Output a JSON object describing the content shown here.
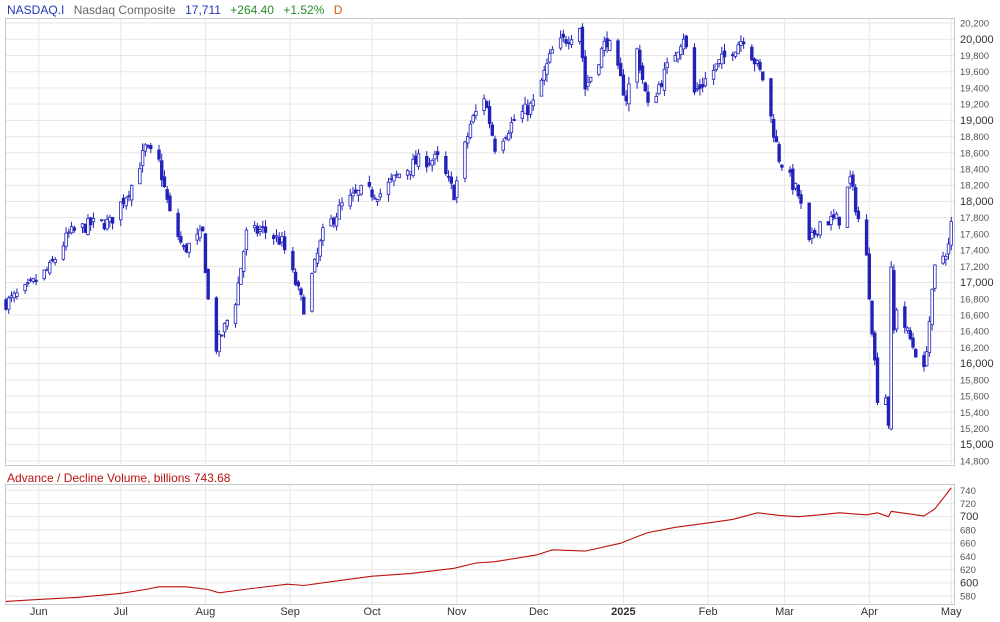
{
  "header": {
    "symbol": "NASDAQ.I",
    "name": "Nasdaq Composite",
    "last": "17,711",
    "change": "+264.40",
    "change_pct": "+1.52%",
    "period": "D"
  },
  "colors": {
    "symbol": "#2233bb",
    "name": "#666666",
    "last": "#2233bb",
    "up": "#2a8a2a",
    "period": "#dd5500",
    "candle": "#2222bb",
    "sub_title": "#bb1111",
    "sub_line": "#bb1111",
    "grid": "#e6e6e6"
  },
  "chart_data": [
    {
      "type": "candlestick",
      "title": "",
      "y_axis_side": "right",
      "ylim": [
        14750,
        20250
      ],
      "y_ticks": [
        {
          "value": 20200,
          "label": "20,200",
          "major": false
        },
        {
          "value": 20000,
          "label": "20,000",
          "major": true
        },
        {
          "value": 19800,
          "label": "19,800",
          "major": false
        },
        {
          "value": 19600,
          "label": "19,600",
          "major": false
        },
        {
          "value": 19400,
          "label": "19,400",
          "major": false
        },
        {
          "value": 19200,
          "label": "19,200",
          "major": false
        },
        {
          "value": 19000,
          "label": "19,000",
          "major": true
        },
        {
          "value": 18800,
          "label": "18,800",
          "major": false
        },
        {
          "value": 18600,
          "label": "18,600",
          "major": false
        },
        {
          "value": 18400,
          "label": "18,400",
          "major": false
        },
        {
          "value": 18200,
          "label": "18,200",
          "major": false
        },
        {
          "value": 18000,
          "label": "18,000",
          "major": true
        },
        {
          "value": 17800,
          "label": "17,800",
          "major": false
        },
        {
          "value": 17600,
          "label": "17,600",
          "major": false
        },
        {
          "value": 17400,
          "label": "17,400",
          "major": false
        },
        {
          "value": 17200,
          "label": "17,200",
          "major": false
        },
        {
          "value": 17000,
          "label": "17,000",
          "major": true
        },
        {
          "value": 16800,
          "label": "16,800",
          "major": false
        },
        {
          "value": 16600,
          "label": "16,600",
          "major": false
        },
        {
          "value": 16400,
          "label": "16,400",
          "major": false
        },
        {
          "value": 16200,
          "label": "16,200",
          "major": false
        },
        {
          "value": 16000,
          "label": "16,000",
          "major": true
        },
        {
          "value": 15800,
          "label": "15,800",
          "major": false
        },
        {
          "value": 15600,
          "label": "15,600",
          "major": false
        },
        {
          "value": 15400,
          "label": "15,400",
          "major": false
        },
        {
          "value": 15200,
          "label": "15,200",
          "major": false
        },
        {
          "value": 15000,
          "label": "15,000",
          "major": true
        },
        {
          "value": 14800,
          "label": "14,800",
          "major": false
        }
      ],
      "x_ticks": [
        {
          "date": "2024-06-01",
          "label": "Jun",
          "bold": false
        },
        {
          "date": "2024-07-01",
          "label": "Jul",
          "bold": false
        },
        {
          "date": "2024-08-01",
          "label": "Aug",
          "bold": false
        },
        {
          "date": "2024-09-01",
          "label": "Sep",
          "bold": false
        },
        {
          "date": "2024-10-01",
          "label": "Oct",
          "bold": false
        },
        {
          "date": "2024-11-01",
          "label": "Nov",
          "bold": false
        },
        {
          "date": "2024-12-01",
          "label": "Dec",
          "bold": false
        },
        {
          "date": "2025-01-01",
          "label": "2025",
          "bold": true
        },
        {
          "date": "2025-02-01",
          "label": "Feb",
          "bold": false
        },
        {
          "date": "2025-03-01",
          "label": "Mar",
          "bold": false
        },
        {
          "date": "2025-04-01",
          "label": "Apr",
          "bold": false
        },
        {
          "date": "2025-05-01",
          "label": "May",
          "bold": false
        }
      ],
      "x_range": [
        "2024-05-20",
        "2025-05-02"
      ],
      "close_path": [
        [
          "2024-05-20",
          16750
        ],
        [
          "2024-05-28",
          16930
        ],
        [
          "2024-06-05",
          17180
        ],
        [
          "2024-06-12",
          17600
        ],
        [
          "2024-06-20",
          17720
        ],
        [
          "2024-06-27",
          17740
        ],
        [
          "2024-07-05",
          18200
        ],
        [
          "2024-07-10",
          18650
        ],
        [
          "2024-07-15",
          18480
        ],
        [
          "2024-07-19",
          17840
        ],
        [
          "2024-07-24",
          17400
        ],
        [
          "2024-07-31",
          17600
        ],
        [
          "2024-08-02",
          16780
        ],
        [
          "2024-08-05",
          16200
        ],
        [
          "2024-08-12",
          16780
        ],
        [
          "2024-08-16",
          17600
        ],
        [
          "2024-08-22",
          17650
        ],
        [
          "2024-08-29",
          17500
        ],
        [
          "2024-09-06",
          16690
        ],
        [
          "2024-09-13",
          17600
        ],
        [
          "2024-09-20",
          17950
        ],
        [
          "2024-09-27",
          18120
        ],
        [
          "2024-10-04",
          18100
        ],
        [
          "2024-10-11",
          18340
        ],
        [
          "2024-10-18",
          18500
        ],
        [
          "2024-10-25",
          18520
        ],
        [
          "2024-10-31",
          18100
        ],
        [
          "2024-11-06",
          18950
        ],
        [
          "2024-11-11",
          19300
        ],
        [
          "2024-11-15",
          18680
        ],
        [
          "2024-11-22",
          19000
        ],
        [
          "2024-11-29",
          19200
        ],
        [
          "2024-12-06",
          19850
        ],
        [
          "2024-12-16",
          20170
        ],
        [
          "2024-12-18",
          19400
        ],
        [
          "2024-12-26",
          20000
        ],
        [
          "2025-01-02",
          19280
        ],
        [
          "2025-01-06",
          19860
        ],
        [
          "2025-01-10",
          19160
        ],
        [
          "2025-01-15",
          19500
        ],
        [
          "2025-01-23",
          20050
        ],
        [
          "2025-01-27",
          19340
        ],
        [
          "2025-02-05",
          19700
        ],
        [
          "2025-02-14",
          20030
        ],
        [
          "2025-02-21",
          19520
        ],
        [
          "2025-02-27",
          18540
        ],
        [
          "2025-03-06",
          18080
        ],
        [
          "2025-03-10",
          17470
        ],
        [
          "2025-03-14",
          17750
        ],
        [
          "2025-03-21",
          17780
        ],
        [
          "2025-03-25",
          18270
        ],
        [
          "2025-03-31",
          17300
        ],
        [
          "2025-04-04",
          15590
        ],
        [
          "2025-04-07",
          15600
        ],
        [
          "2025-04-08",
          15270
        ],
        [
          "2025-04-09",
          17120
        ],
        [
          "2025-04-10",
          16400
        ],
        [
          "2025-04-11",
          16700
        ],
        [
          "2025-04-16",
          16300
        ],
        [
          "2025-04-21",
          15900
        ],
        [
          "2025-04-25",
          17160
        ],
        [
          "2025-04-30",
          17450
        ],
        [
          "2025-05-01",
          17711
        ]
      ]
    },
    {
      "type": "line",
      "title": "Advance / Decline Volume, billions",
      "last_value": "743.68",
      "y_axis_side": "right",
      "ylim": [
        568,
        748
      ],
      "y_ticks": [
        {
          "value": 740,
          "label": "740",
          "major": false
        },
        {
          "value": 720,
          "label": "720",
          "major": false
        },
        {
          "value": 700,
          "label": "700",
          "major": true
        },
        {
          "value": 680,
          "label": "680",
          "major": false
        },
        {
          "value": 660,
          "label": "660",
          "major": false
        },
        {
          "value": 640,
          "label": "640",
          "major": false
        },
        {
          "value": 620,
          "label": "620",
          "major": false
        },
        {
          "value": 600,
          "label": "600",
          "major": true
        },
        {
          "value": 580,
          "label": "580",
          "major": false
        }
      ],
      "points": [
        [
          "2024-05-20",
          572
        ],
        [
          "2024-06-01",
          575
        ],
        [
          "2024-06-15",
          578
        ],
        [
          "2024-07-01",
          584
        ],
        [
          "2024-07-10",
          590
        ],
        [
          "2024-07-15",
          594
        ],
        [
          "2024-07-25",
          594
        ],
        [
          "2024-08-02",
          590
        ],
        [
          "2024-08-06",
          585
        ],
        [
          "2024-08-15",
          590
        ],
        [
          "2024-08-31",
          598
        ],
        [
          "2024-09-06",
          596
        ],
        [
          "2024-09-20",
          604
        ],
        [
          "2024-10-01",
          610
        ],
        [
          "2024-10-15",
          614
        ],
        [
          "2024-10-31",
          622
        ],
        [
          "2024-11-08",
          630
        ],
        [
          "2024-11-15",
          632
        ],
        [
          "2024-11-30",
          642
        ],
        [
          "2024-12-06",
          650
        ],
        [
          "2024-12-18",
          648
        ],
        [
          "2024-12-31",
          660
        ],
        [
          "2025-01-06",
          670
        ],
        [
          "2025-01-10",
          676
        ],
        [
          "2025-01-20",
          684
        ],
        [
          "2025-01-31",
          690
        ],
        [
          "2025-02-10",
          696
        ],
        [
          "2025-02-19",
          706
        ],
        [
          "2025-02-27",
          702
        ],
        [
          "2025-03-06",
          700
        ],
        [
          "2025-03-14",
          703
        ],
        [
          "2025-03-21",
          706
        ],
        [
          "2025-03-31",
          703
        ],
        [
          "2025-04-04",
          706
        ],
        [
          "2025-04-08",
          700
        ],
        [
          "2025-04-09",
          708
        ],
        [
          "2025-04-16",
          704
        ],
        [
          "2025-04-21",
          701
        ],
        [
          "2025-04-25",
          712
        ],
        [
          "2025-05-01",
          743.68
        ]
      ]
    }
  ]
}
